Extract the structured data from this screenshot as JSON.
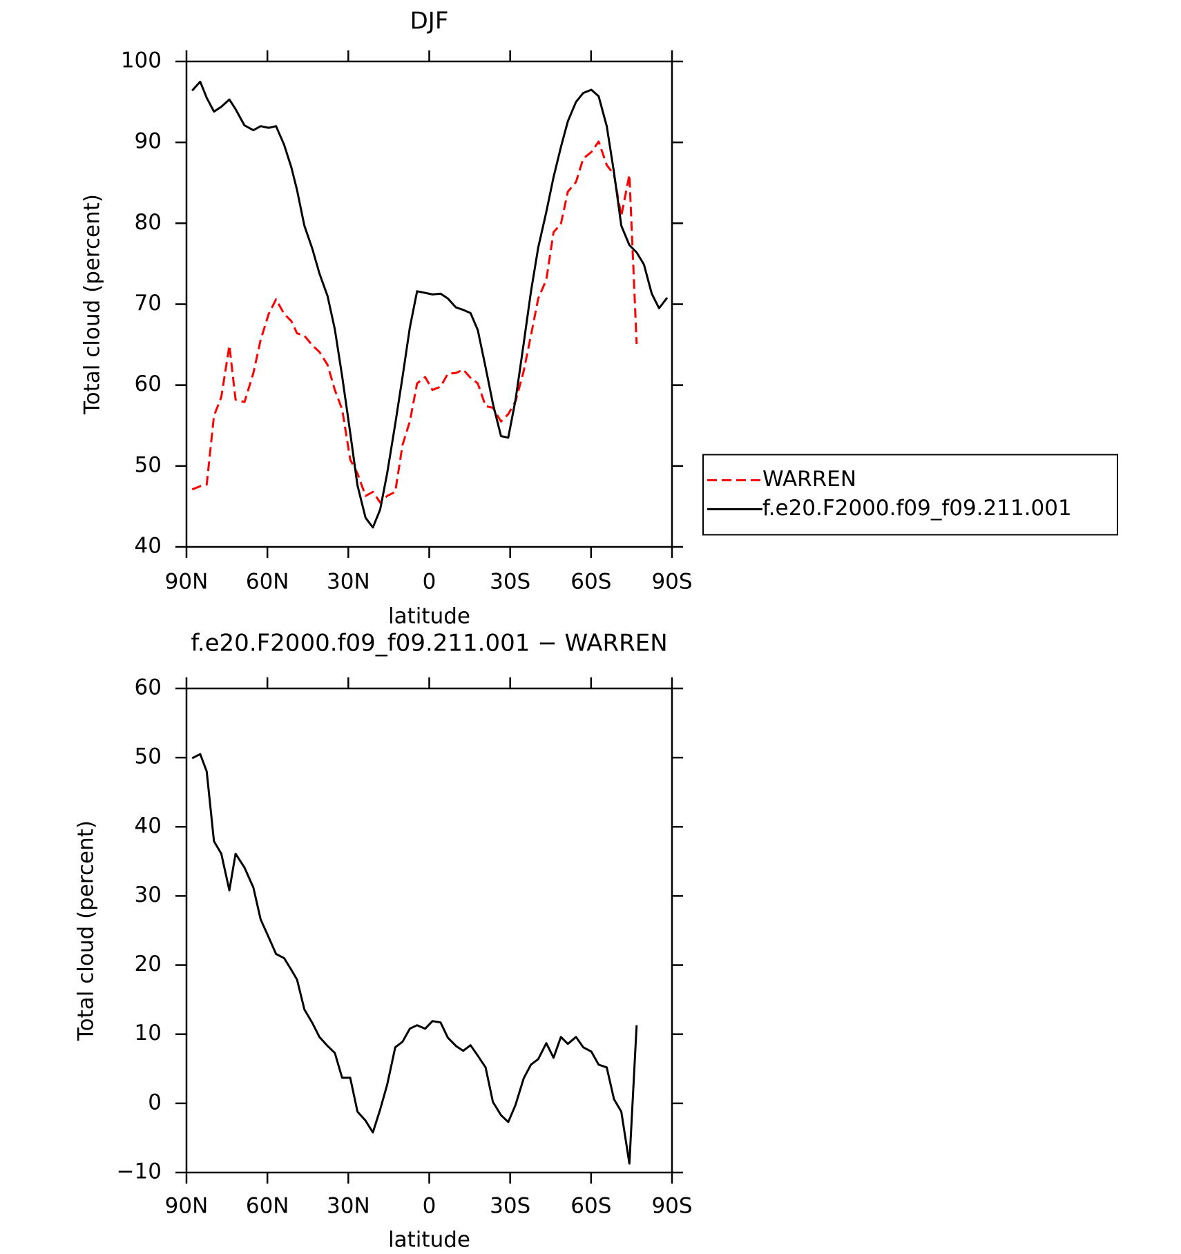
{
  "chart_data": [
    {
      "type": "line",
      "title": "DJF",
      "xlabel": "latitude",
      "ylabel": "Total cloud (percent)",
      "x": [
        87.9,
        84.9,
        82.5,
        79.8,
        77.1,
        74.1,
        71.8,
        68.5,
        65.2,
        62.5,
        59.5,
        56.8,
        53.8,
        51.1,
        49.0,
        46.3,
        43.3,
        40.7,
        37.7,
        35.0,
        32.3,
        29.3,
        26.6,
        23.6,
        20.9,
        18.2,
        15.6,
        12.6,
        9.9,
        7.2,
        4.5,
        1.5,
        -1.2,
        -4.2,
        -6.9,
        -9.9,
        -12.6,
        -15.3,
        -18.0,
        -20.9,
        -23.6,
        -26.6,
        -29.3,
        -32.0,
        -35.0,
        -37.7,
        -40.4,
        -43.4,
        -46.1,
        -48.8,
        -51.4,
        -54.4,
        -57.1,
        -60.1,
        -62.8,
        -65.8,
        -68.5,
        -71.2,
        -74.2,
        -76.9,
        -79.6,
        -82.5,
        -85.2,
        -88.2
      ],
      "series": [
        {
          "name": "WARREN",
          "color": "#ff0000",
          "linestyle": "dashed",
          "values": [
            47.1,
            47.5,
            47.7,
            56.2,
            58.5,
            64.9,
            58.2,
            57.9,
            61.5,
            65.6,
            68.8,
            70.6,
            68.8,
            67.9,
            66.4,
            66.1,
            64.9,
            64.1,
            62.5,
            59.4,
            57.0,
            50.8,
            49.1,
            46.3,
            46.8,
            45.5,
            46.3,
            46.8,
            52.6,
            55.5,
            60.2,
            61.0,
            59.4,
            59.8,
            61.4,
            61.5,
            61.9,
            60.9,
            60.2,
            57.4,
            57.2,
            55.5,
            56.4,
            58.0,
            61.7,
            66.1,
            70.7,
            73.0,
            78.9,
            79.9,
            83.9,
            85.1,
            88.0,
            88.8,
            90.1,
            87.2,
            86.0,
            80.9,
            86.0,
            65.1,
            null,
            null,
            null,
            null
          ]
        },
        {
          "name": "f.e20.F2000.f09_f09.211.001",
          "color": "#000000",
          "linestyle": "solid",
          "values": [
            96.4,
            97.5,
            95.5,
            93.8,
            94.4,
            95.3,
            94.1,
            92.1,
            91.5,
            92.0,
            91.8,
            92.0,
            89.7,
            86.9,
            84.1,
            79.7,
            76.8,
            73.8,
            71.0,
            66.9,
            61.1,
            54.1,
            47.6,
            43.6,
            42.4,
            44.6,
            49.1,
            55.2,
            61.0,
            67.1,
            71.6,
            71.4,
            71.2,
            71.3,
            70.7,
            69.6,
            69.3,
            68.9,
            66.8,
            62.2,
            57.7,
            53.7,
            53.5,
            58.2,
            65.1,
            71.5,
            77.0,
            81.4,
            85.7,
            89.4,
            92.6,
            95.0,
            96.1,
            96.5,
            95.7,
            92.0,
            86.3,
            79.7,
            77.3,
            76.4,
            74.9,
            71.3,
            69.5,
            70.8
          ]
        }
      ],
      "xlim": [
        90,
        -90
      ],
      "xticks": [
        {
          "value": 90,
          "label": "90N"
        },
        {
          "value": 60,
          "label": "60N"
        },
        {
          "value": 30,
          "label": "30N"
        },
        0,
        {
          "value": -30,
          "label": "30S"
        },
        {
          "value": -60,
          "label": "60S"
        },
        {
          "value": -90,
          "label": "90S"
        }
      ],
      "ylim": [
        40,
        100
      ],
      "yticks": [
        40,
        50,
        60,
        70,
        80,
        90,
        100
      ],
      "legend": "right"
    },
    {
      "type": "line",
      "title": "f.e20.F2000.f09_f09.211.001 − WARREN",
      "xlabel": "latitude",
      "ylabel": "Total cloud (percent)",
      "x": [
        87.9,
        84.9,
        82.5,
        79.8,
        77.1,
        74.1,
        71.8,
        68.5,
        65.2,
        62.5,
        59.5,
        56.8,
        53.8,
        51.1,
        49.0,
        46.3,
        43.3,
        40.7,
        37.7,
        35.0,
        32.3,
        29.3,
        26.6,
        23.6,
        20.9,
        18.2,
        15.6,
        12.6,
        9.9,
        7.2,
        4.5,
        1.5,
        -1.2,
        -4.2,
        -6.9,
        -9.9,
        -12.6,
        -15.3,
        -18.0,
        -20.9,
        -23.6,
        -26.6,
        -29.3,
        -32.0,
        -35.0,
        -37.7,
        -40.4,
        -43.4,
        -46.1,
        -48.8,
        -51.4,
        -54.4,
        -57.1,
        -60.1,
        -62.8,
        -65.8,
        -68.5,
        -71.2,
        -74.2,
        -76.9,
        -79.6,
        -82.5,
        -85.2,
        -88.2
      ],
      "series": [
        {
          "color": "#000000",
          "linestyle": "solid",
          "values": [
            49.9,
            50.5,
            48.0,
            37.9,
            36.1,
            30.8,
            36.1,
            34.1,
            31.2,
            26.6,
            24.0,
            21.6,
            21.0,
            19.3,
            17.9,
            13.6,
            11.6,
            9.6,
            8.3,
            7.3,
            3.7,
            3.7,
            -1.2,
            -2.5,
            -4.2,
            -0.9,
            2.7,
            8.1,
            8.9,
            10.8,
            11.3,
            10.8,
            11.9,
            11.7,
            9.5,
            8.3,
            7.6,
            8.4,
            6.9,
            5.2,
            0.2,
            -1.7,
            -2.7,
            -0.2,
            3.6,
            5.6,
            6.4,
            8.7,
            6.6,
            9.6,
            8.6,
            9.6,
            8.1,
            7.5,
            5.6,
            5.2,
            0.6,
            -1.2,
            -8.7,
            11.3,
            null,
            null,
            null,
            null
          ]
        }
      ],
      "xlim": [
        90,
        -90
      ],
      "xticks": [
        {
          "value": 90,
          "label": "90N"
        },
        {
          "value": 60,
          "label": "60N"
        },
        {
          "value": 30,
          "label": "30N"
        },
        0,
        {
          "value": -30,
          "label": "30S"
        },
        {
          "value": -60,
          "label": "60S"
        },
        {
          "value": -90,
          "label": "90S"
        }
      ],
      "ylim": [
        -10,
        60
      ],
      "yticks": [
        {
          "value": -10,
          "label": "−10"
        },
        0,
        10,
        20,
        30,
        40,
        50,
        60
      ]
    }
  ]
}
